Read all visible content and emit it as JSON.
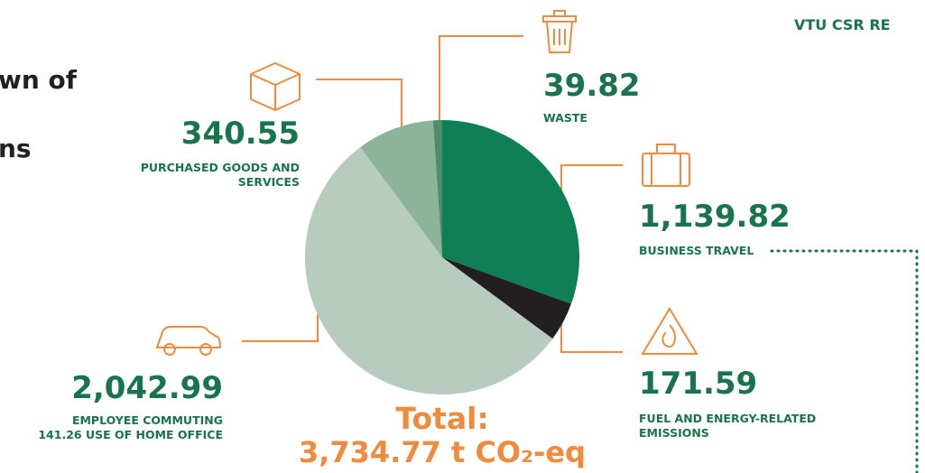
{
  "chart_data": {
    "type": "pie",
    "header": "VTU CSR RE",
    "title_fragments": [
      "wn of",
      "ns"
    ],
    "categories": [
      "BUSINESS TRAVEL",
      "FUEL AND ENERGY-RELATED EMISSIONS",
      "EMPLOYEE COMMUTING",
      "PURCHASED GOODS AND SERVICES",
      "WASTE"
    ],
    "values": [
      1139.82,
      171.59,
      2042.99,
      340.55,
      39.82
    ],
    "value_labels": [
      "1,139.82",
      "171.59",
      "2,042.99",
      "340.55",
      "39.82"
    ],
    "colors": [
      "#0f8055",
      "#231f20",
      "#b7cbbf",
      "#8db39b",
      "#4f8d69"
    ],
    "annotation": "141.26 USE OF HOME OFFICE",
    "total_label": "Total:",
    "total_value": "3,734.77 t CO₂-eq"
  }
}
